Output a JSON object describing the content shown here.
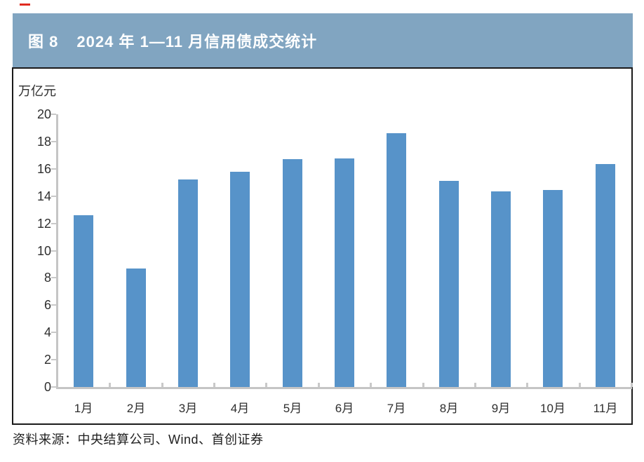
{
  "marker": {
    "red_dash_color": "#e02b20"
  },
  "header": {
    "figure_label": "图 8",
    "title": "2024 年 1—11 月信用债成交统计",
    "bg_color": "#81a5c1",
    "text_color": "#ffffff"
  },
  "chart_data": {
    "type": "bar",
    "title": "图 8 2024 年 1—11 月信用债成交统计",
    "unit_label": "万亿元",
    "xlabel": "",
    "ylabel": "万亿元",
    "categories": [
      "1月",
      "2月",
      "3月",
      "4月",
      "5月",
      "6月",
      "7月",
      "8月",
      "9月",
      "10月",
      "11月"
    ],
    "values": [
      12.6,
      8.7,
      15.2,
      15.8,
      16.7,
      16.75,
      18.6,
      15.1,
      14.35,
      14.45,
      16.35
    ],
    "ylim": [
      0,
      20
    ],
    "yticks": [
      0,
      2,
      4,
      6,
      8,
      10,
      12,
      14,
      16,
      18,
      20
    ],
    "grid": false,
    "legend": "none",
    "bar_color": "#5793c9",
    "axis_color": "#c5c5c5",
    "tick_color": "#c9c9c9"
  },
  "footer": {
    "source": "资料来源：中央结算公司、Wind、首创证券"
  }
}
